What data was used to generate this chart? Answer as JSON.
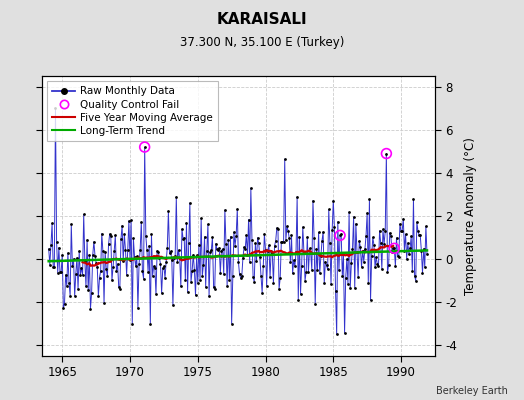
{
  "title": "KARAISALI",
  "subtitle": "37.300 N, 35.100 E (Turkey)",
  "ylabel": "Temperature Anomaly (°C)",
  "credit": "Berkeley Earth",
  "xlim": [
    1963.5,
    1992.5
  ],
  "ylim": [
    -4.5,
    8.5
  ],
  "yticks": [
    -4,
    -2,
    0,
    2,
    4,
    6,
    8
  ],
  "xticks": [
    1965,
    1970,
    1975,
    1980,
    1985,
    1990
  ],
  "background_color": "#e0e0e0",
  "plot_bg_color": "#ffffff",
  "raw_color": "#3333cc",
  "dot_color": "#000000",
  "qc_color": "#ff00ff",
  "ma_color": "#cc0000",
  "trend_color": "#00aa00",
  "seed": 42,
  "n_years": 28,
  "start_year": 1964,
  "trend_slope": 0.018,
  "trend_intercept": -0.1,
  "noise_std": 1.15
}
